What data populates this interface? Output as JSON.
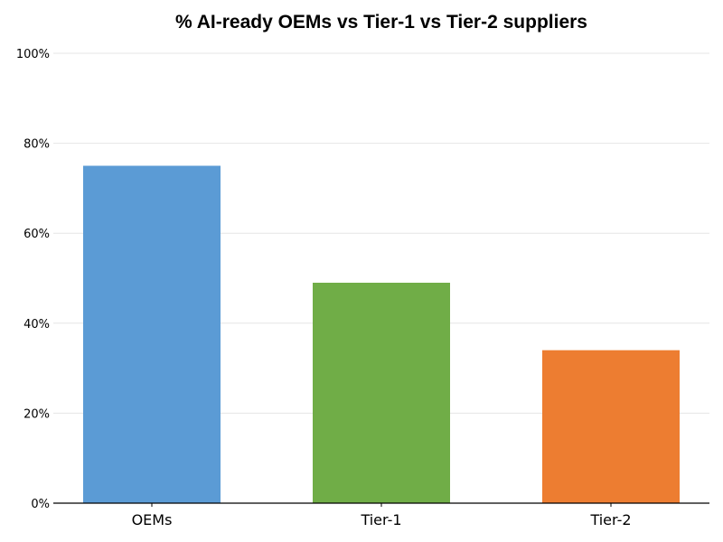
{
  "chart_data": {
    "type": "bar",
    "title": "% AI-ready OEMs vs Tier-1 vs Tier-2 suppliers",
    "xlabel": "",
    "ylabel": "",
    "categories": [
      "OEMs",
      "Tier-1",
      "Tier-2"
    ],
    "values": [
      75,
      49,
      34
    ],
    "colors": [
      "#5b9bd5",
      "#70ad47",
      "#ed7d31"
    ],
    "ylim": [
      0,
      100
    ],
    "yticks": [
      0,
      20,
      40,
      60,
      80,
      100
    ],
    "ytick_labels": [
      "0%",
      "20%",
      "40%",
      "60%",
      "80%",
      "100%"
    ],
    "grid": "horizontal",
    "legend": "none"
  }
}
